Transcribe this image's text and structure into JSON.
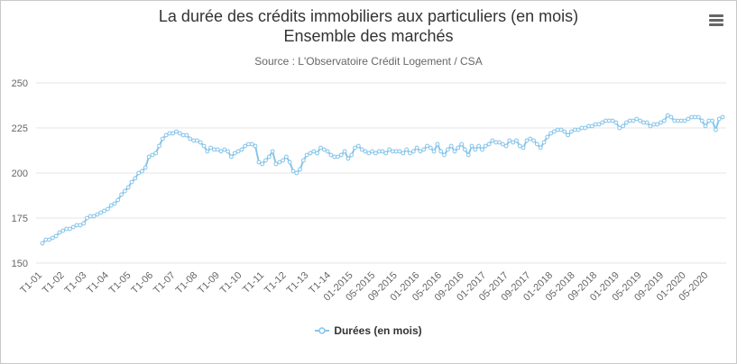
{
  "header": {
    "title_line1": "La durée des crédits immobiliers aux particuliers (en mois)",
    "title_line2": "Ensemble des marchés",
    "subtitle": "Source : L'Observatoire Crédit Logement / CSA"
  },
  "colors": {
    "series": "#86c5ea",
    "grid": "#e6e6e6",
    "axis_text": "#666666"
  },
  "icons": {
    "menu": "hamburger-menu-icon"
  },
  "chart_data": {
    "type": "line",
    "title": "La durée des crédits immobiliers aux particuliers (en mois)",
    "subtitle": "Ensemble des marchés",
    "ylim": [
      150,
      250
    ],
    "yticks": [
      150,
      175,
      200,
      225,
      250
    ],
    "grid": true,
    "legend_position": "bottom-center",
    "x_tick_labels": [
      "T1-01",
      "T1-02",
      "T1-03",
      "T1-04",
      "T1-05",
      "T1-06",
      "T1-07",
      "T1-08",
      "T1-09",
      "T1-10",
      "T1-11",
      "T1-12",
      "T1-13",
      "T1-14",
      "01-2015",
      "05-2015",
      "09-2015",
      "01-2016",
      "05-2016",
      "09-2016",
      "01-2017",
      "05-2017",
      "09-2017",
      "01-2018",
      "05-2018",
      "09-2018",
      "01-2019",
      "05-2019",
      "09-2019",
      "01-2020",
      "05-2020"
    ],
    "series": [
      {
        "name": "Durées (en mois)",
        "values": [
          161,
          163,
          163,
          164,
          165,
          167,
          168,
          169,
          169,
          170,
          171,
          171,
          172,
          175,
          176,
          176,
          177,
          178,
          179,
          180,
          182,
          183,
          185,
          188,
          190,
          192,
          195,
          197,
          200,
          201,
          203,
          209,
          210,
          211,
          215,
          219,
          221,
          222,
          222,
          223,
          222,
          221,
          221,
          219,
          218,
          218,
          217,
          215,
          212,
          214,
          213,
          213,
          212,
          213,
          212,
          209,
          211,
          212,
          213,
          215,
          216,
          216,
          215,
          206,
          205,
          207,
          209,
          212,
          205,
          206,
          207,
          209,
          206,
          201,
          200,
          202,
          207,
          210,
          211,
          212,
          211,
          214,
          213,
          212,
          210,
          209,
          209,
          210,
          212,
          208,
          210,
          214,
          215,
          213,
          212,
          211,
          212,
          211,
          212,
          212,
          211,
          213,
          212,
          212,
          212,
          211,
          213,
          211,
          212,
          214,
          212,
          213,
          215,
          214,
          212,
          216,
          212,
          210,
          213,
          215,
          212,
          214,
          216,
          213,
          210,
          215,
          213,
          215,
          213,
          215,
          216,
          218,
          217,
          217,
          216,
          215,
          218,
          217,
          218,
          215,
          214,
          218,
          219,
          218,
          216,
          214,
          217,
          220,
          222,
          223,
          224,
          224,
          223,
          221,
          223,
          224,
          224,
          225,
          225,
          226,
          226,
          227,
          227,
          228,
          229,
          229,
          229,
          228,
          225,
          226,
          228,
          229,
          229,
          230,
          229,
          228,
          228,
          226,
          227,
          227,
          228,
          229,
          232,
          231,
          229,
          229,
          229,
          229,
          230,
          231,
          231,
          231,
          229,
          226,
          229,
          229,
          224,
          230,
          231
        ]
      }
    ]
  }
}
